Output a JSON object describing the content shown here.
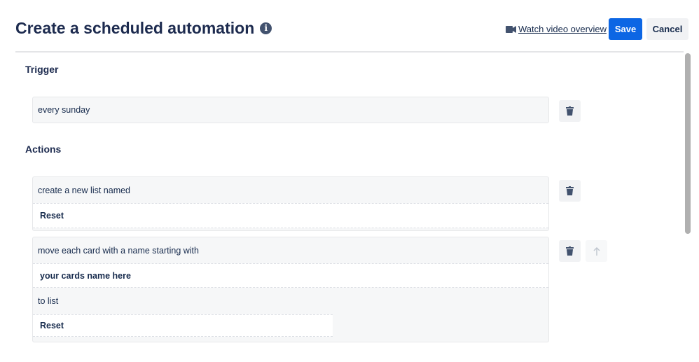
{
  "header": {
    "title": "Create a scheduled automation",
    "info_icon": "info-circle-icon",
    "video_link": "Watch video overview",
    "video_icon": "video-camera-icon",
    "save": "Save",
    "cancel": "Cancel"
  },
  "trigger": {
    "heading": "Trigger",
    "value": "every sunday"
  },
  "actions": {
    "heading": "Actions",
    "items": [
      {
        "text": "create a new list named",
        "field": "Reset"
      },
      {
        "text": "move each card with a name starting with",
        "field": "your cards name here",
        "text2": "to list",
        "field2": "Reset"
      }
    ]
  },
  "colors": {
    "primary": "#0c66e4",
    "text": "#172b4d"
  }
}
